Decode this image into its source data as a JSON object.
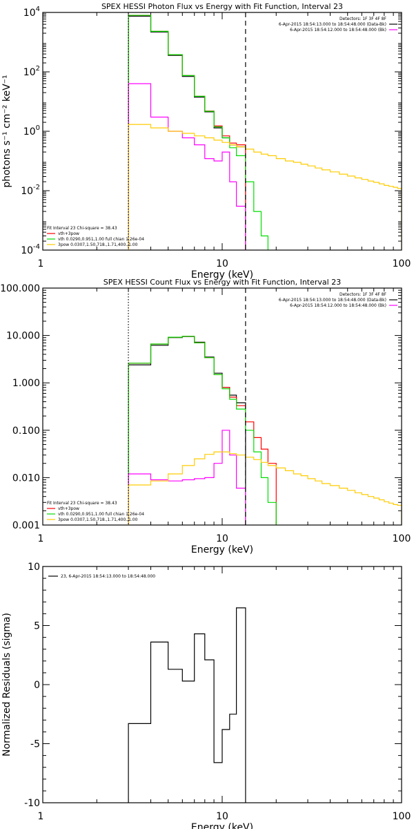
{
  "chart_data": [
    {
      "type": "line",
      "title": "SPEX HESSI Photon Flux vs Energy with Fit Function, Interval 23",
      "xlabel": "Energy (keV)",
      "ylabel": "photons s⁻¹ cm⁻² keV⁻¹",
      "xscale": "log",
      "yscale": "log",
      "xlim": [
        1,
        100
      ],
      "ylim": [
        0.0001,
        10000
      ],
      "xticks": [
        {
          "v": 1,
          "label": "1"
        },
        {
          "v": 10,
          "label": "10"
        },
        {
          "v": 100,
          "label": "100"
        }
      ],
      "yticks": [
        {
          "v": 0.0001,
          "b": "10",
          "e": "-4"
        },
        {
          "v": 0.01,
          "b": "10",
          "e": "-2"
        },
        {
          "v": 1,
          "b": "10",
          "e": "0"
        },
        {
          "v": 100,
          "b": "10",
          "e": "2"
        },
        {
          "v": 10000,
          "b": "10",
          "e": "4"
        }
      ],
      "vlines": [
        {
          "x": 3,
          "style": "dotted"
        },
        {
          "x": 13.5,
          "style": "dashed"
        }
      ],
      "legend_top": {
        "lines": [
          "Detectors: 1F 3F 4F 8F",
          "6-Apr-2015 18:54:13.000 to 18:54:48.000 (Data-Bk)",
          "6-Apr-2015 18:54:12.000 to 18:54:48.000 (Bk)"
        ],
        "colors": [
          "#000000",
          "#000000",
          "#ff00ff"
        ]
      },
      "legend_bottom": {
        "header": "Fit Interval 23   Chi-square = 38.43",
        "entries": [
          {
            "text": "vth+3pow",
            "color": "#ff0000"
          },
          {
            "text": "vth 0.0290,0.951,1.00  full chian 1.26e-04",
            "color": "#00dd00"
          },
          {
            "text": "3pow 0.0307,1.50,718.,1.71,400.,1.00",
            "color": "#ffcc00"
          }
        ]
      },
      "series": [
        {
          "color": "#000000",
          "edges": [
            3,
            4,
            5,
            6,
            7,
            8,
            9,
            10,
            11,
            12,
            13.5
          ],
          "values": [
            7500,
            2200,
            360,
            70,
            14,
            4.5,
            1.3,
            0.6,
            0.35,
            0.3
          ]
        },
        {
          "color": "#ff0000",
          "edges": [
            3,
            4,
            5,
            6,
            7,
            8,
            9,
            10,
            11,
            12,
            13.5
          ],
          "values": [
            8000,
            2300,
            380,
            75,
            15,
            4.8,
            1.5,
            0.7,
            0.4,
            0.35
          ]
        },
        {
          "color": "#00dd00",
          "edges": [
            3,
            4,
            5,
            6,
            7,
            8,
            9,
            10,
            11,
            12,
            13.5,
            15,
            16.5,
            18
          ],
          "values": [
            8000,
            2300,
            380,
            75,
            15,
            4.7,
            1.4,
            0.6,
            0.28,
            0.15,
            0.02,
            0.002,
            0.0003
          ]
        },
        {
          "color": "#ff00ff",
          "edges": [
            3,
            4,
            5,
            6,
            7,
            8,
            9,
            10,
            11,
            12,
            13.5
          ],
          "values": [
            40,
            3,
            1,
            0.6,
            0.35,
            0.12,
            0.1,
            0.2,
            0.02,
            0.003
          ]
        },
        {
          "color": "#ffcc00",
          "edges": [
            3,
            4,
            5,
            6,
            7,
            8,
            9,
            10,
            11,
            12,
            13.5,
            15,
            16.5,
            18,
            20,
            22.5,
            25,
            27.5,
            30,
            33,
            36,
            40,
            45,
            50,
            55,
            60,
            65,
            70,
            75,
            80,
            85,
            90,
            95,
            100
          ],
          "values": [
            1.7,
            1.3,
            1.0,
            0.85,
            0.7,
            0.6,
            0.5,
            0.42,
            0.35,
            0.3,
            0.25,
            0.2,
            0.17,
            0.15,
            0.12,
            0.1,
            0.09,
            0.078,
            0.068,
            0.058,
            0.05,
            0.043,
            0.036,
            0.031,
            0.027,
            0.024,
            0.021,
            0.019,
            0.017,
            0.015,
            0.014,
            0.013,
            0.012
          ]
        }
      ]
    },
    {
      "type": "line",
      "title": "SPEX HESSI Count Flux vs Energy with Fit Function, Interval 23",
      "xlabel": "Energy (keV)",
      "ylabel": "",
      "xscale": "log",
      "yscale": "log",
      "xlim": [
        1,
        100
      ],
      "ylim": [
        0.001,
        100
      ],
      "xticks": [
        {
          "v": 1,
          "label": "1"
        },
        {
          "v": 10,
          "label": "10"
        },
        {
          "v": 100,
          "label": "100"
        }
      ],
      "yticks": [
        {
          "v": 0.001,
          "label": "0.001"
        },
        {
          "v": 0.01,
          "label": "0.010"
        },
        {
          "v": 0.1,
          "label": "0.100"
        },
        {
          "v": 1,
          "label": "1.000"
        },
        {
          "v": 10,
          "label": "10.000"
        },
        {
          "v": 100,
          "label": "100.000"
        }
      ],
      "vlines": [
        {
          "x": 3,
          "style": "dotted"
        },
        {
          "x": 13.5,
          "style": "dashed"
        }
      ],
      "legend_top": {
        "lines": [
          "Detectors: 1F 3F 4F 8F",
          "6-Apr-2015 18:54:13.000 to 18:54:48.000 (Data-Bk)",
          "6-Apr-2015 18:54:12.000 to 18:54:48.000 (Bk)"
        ],
        "colors": [
          "#000000",
          "#000000",
          "#ff00ff"
        ]
      },
      "legend_bottom": {
        "header": "Fit Interval 23   Chi-square = 38.43",
        "entries": [
          {
            "text": "vth+3pow",
            "color": "#ff0000"
          },
          {
            "text": "vth 0.0290,0.951,1.00  full chian 1.26e-04",
            "color": "#00dd00"
          },
          {
            "text": "3pow 0.0307,1.50,718.,1.71,400.,1.00",
            "color": "#ffcc00"
          }
        ]
      },
      "series": [
        {
          "color": "#000000",
          "edges": [
            3,
            4,
            5,
            6,
            7,
            8,
            9,
            10,
            11,
            12,
            13.5
          ],
          "values": [
            2.4,
            6.2,
            9.0,
            9.5,
            7.2,
            3.5,
            1.6,
            0.8,
            0.55,
            0.38
          ]
        },
        {
          "color": "#ff0000",
          "edges": [
            3,
            4,
            5,
            6,
            7,
            8,
            9,
            10,
            11,
            12,
            13.5,
            15,
            16.5,
            18,
            20
          ],
          "values": [
            2.6,
            6.6,
            9.2,
            9.6,
            7.0,
            3.4,
            1.5,
            0.8,
            0.5,
            0.33,
            0.15,
            0.07,
            0.04,
            0.02
          ]
        },
        {
          "color": "#00dd00",
          "edges": [
            3,
            4,
            5,
            6,
            7,
            8,
            9,
            10,
            11,
            12,
            13.5,
            15,
            16.5,
            18,
            20
          ],
          "values": [
            2.6,
            6.6,
            9.2,
            9.6,
            7.0,
            3.4,
            1.5,
            0.75,
            0.45,
            0.28,
            0.1,
            0.035,
            0.01,
            0.003
          ]
        },
        {
          "color": "#ff00ff",
          "edges": [
            3,
            4,
            5,
            6,
            7,
            8,
            9,
            10,
            11,
            12,
            13.5
          ],
          "values": [
            0.012,
            0.009,
            0.0085,
            0.009,
            0.0095,
            0.01,
            0.02,
            0.1,
            0.03,
            0.006
          ]
        },
        {
          "color": "#ffcc00",
          "edges": [
            3,
            4,
            5,
            6,
            7,
            8,
            9,
            10,
            11,
            12,
            13.5,
            15,
            16.5,
            18,
            20,
            22.5,
            25,
            27.5,
            30,
            33,
            36,
            40,
            45,
            50,
            55,
            60,
            65,
            70,
            75,
            80,
            85,
            90,
            95,
            100
          ],
          "values": [
            0.007,
            0.0085,
            0.012,
            0.018,
            0.025,
            0.031,
            0.035,
            0.035,
            0.032,
            0.03,
            0.027,
            0.024,
            0.021,
            0.018,
            0.016,
            0.014,
            0.012,
            0.011,
            0.0095,
            0.0085,
            0.0075,
            0.0068,
            0.006,
            0.0054,
            0.0048,
            0.0044,
            0.004,
            0.0037,
            0.0034,
            0.0031,
            0.0029,
            0.0027,
            0.0026
          ]
        }
      ]
    },
    {
      "type": "line",
      "title": "",
      "xlabel": "Energy (keV)",
      "ylabel": "Normalized Residuals (sigma)",
      "xscale": "log",
      "yscale": "linear",
      "xlim": [
        1,
        100
      ],
      "ylim": [
        -10,
        10
      ],
      "xticks": [
        {
          "v": 1,
          "label": "1"
        },
        {
          "v": 10,
          "label": "10"
        },
        {
          "v": 100,
          "label": "100"
        }
      ],
      "yticks": [
        {
          "v": -10,
          "label": "-10"
        },
        {
          "v": -5,
          "label": "-5"
        },
        {
          "v": 0,
          "label": "0"
        },
        {
          "v": 5,
          "label": "5"
        },
        {
          "v": 10,
          "label": "10"
        }
      ],
      "vlines": [],
      "legend_top_left": {
        "text": "23,  6-Apr-2015 18:54:13.000 to 18:54:48.000",
        "color": "#000000"
      },
      "series": [
        {
          "color": "#000000",
          "edges": [
            3,
            4,
            5,
            6,
            7,
            8,
            9,
            10,
            11,
            12,
            13.5
          ],
          "values": [
            -3.3,
            3.6,
            1.3,
            0.3,
            4.3,
            2.1,
            -6.6,
            -3.8,
            -2.5,
            6.5
          ]
        }
      ]
    }
  ]
}
